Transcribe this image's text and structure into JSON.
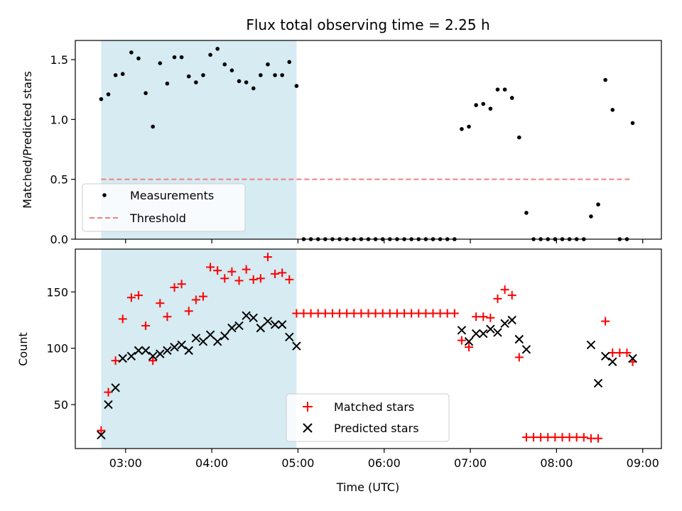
{
  "title": "Flux total observing time = 2.25 h",
  "xlabel": "Time (UTC)",
  "x_tick_labels": [
    "03:00",
    "04:00",
    "05:00",
    "06:00",
    "07:00",
    "08:00",
    "09:00"
  ],
  "colors": {
    "highlight": "#add8e6",
    "measurements": "#000000",
    "threshold": "#f08080",
    "matched": "#ff0000",
    "predicted": "#000000"
  },
  "chart_data": [
    {
      "type": "scatter",
      "ylabel": "Matched/Predicted stars",
      "xlim": [
        "02:25",
        "09:13"
      ],
      "ylim": [
        0,
        1.66
      ],
      "y_ticks": [
        0.0,
        0.5,
        1.0,
        1.5
      ],
      "y_tick_labels": [
        "0.0",
        "0.5",
        "1.0",
        "1.5"
      ],
      "highlight_span": [
        "02:43",
        "04:59"
      ],
      "legend": {
        "position": "lower-left",
        "entries": [
          "Measurements",
          "Threshold"
        ]
      },
      "threshold": {
        "name": "Threshold",
        "value": 0.5,
        "x": [
          "02:43",
          "08:53"
        ]
      },
      "series": [
        {
          "name": "Measurements",
          "points": [
            [
              "02:43",
              1.17
            ],
            [
              "02:48",
              1.21
            ],
            [
              "02:53",
              1.37
            ],
            [
              "02:58",
              1.38
            ],
            [
              "03:04",
              1.56
            ],
            [
              "03:09",
              1.51
            ],
            [
              "03:14",
              1.22
            ],
            [
              "03:19",
              0.94
            ],
            [
              "03:24",
              1.47
            ],
            [
              "03:29",
              1.3
            ],
            [
              "03:34",
              1.52
            ],
            [
              "03:39",
              1.52
            ],
            [
              "03:44",
              1.36
            ],
            [
              "03:49",
              1.31
            ],
            [
              "03:54",
              1.37
            ],
            [
              "03:59",
              1.54
            ],
            [
              "04:04",
              1.59
            ],
            [
              "04:09",
              1.46
            ],
            [
              "04:14",
              1.41
            ],
            [
              "04:19",
              1.32
            ],
            [
              "04:24",
              1.31
            ],
            [
              "04:29",
              1.26
            ],
            [
              "04:34",
              1.37
            ],
            [
              "04:39",
              1.46
            ],
            [
              "04:44",
              1.37
            ],
            [
              "04:49",
              1.37
            ],
            [
              "04:54",
              1.48
            ],
            [
              "04:59",
              1.28
            ],
            [
              "05:04",
              0
            ],
            [
              "05:09",
              0
            ],
            [
              "05:14",
              0
            ],
            [
              "05:19",
              0
            ],
            [
              "05:24",
              0
            ],
            [
              "05:29",
              0
            ],
            [
              "05:34",
              0
            ],
            [
              "05:39",
              0
            ],
            [
              "05:44",
              0
            ],
            [
              "05:49",
              0
            ],
            [
              "05:54",
              0
            ],
            [
              "05:59",
              0
            ],
            [
              "06:04",
              0
            ],
            [
              "06:09",
              0
            ],
            [
              "06:14",
              0
            ],
            [
              "06:19",
              0
            ],
            [
              "06:24",
              0
            ],
            [
              "06:29",
              0
            ],
            [
              "06:34",
              0
            ],
            [
              "06:39",
              0
            ],
            [
              "06:44",
              0
            ],
            [
              "06:49",
              0
            ],
            [
              "06:54",
              0.92
            ],
            [
              "06:59",
              0.94
            ],
            [
              "07:04",
              1.12
            ],
            [
              "07:09",
              1.13
            ],
            [
              "07:14",
              1.09
            ],
            [
              "07:19",
              1.25
            ],
            [
              "07:24",
              1.25
            ],
            [
              "07:29",
              1.18
            ],
            [
              "07:34",
              0.85
            ],
            [
              "07:39",
              0.22
            ],
            [
              "07:44",
              0
            ],
            [
              "07:49",
              0
            ],
            [
              "07:54",
              0
            ],
            [
              "07:59",
              0
            ],
            [
              "08:04",
              0
            ],
            [
              "08:09",
              0
            ],
            [
              "08:14",
              0
            ],
            [
              "08:19",
              0
            ],
            [
              "08:24",
              0.19
            ],
            [
              "08:29",
              0.29
            ],
            [
              "08:34",
              1.33
            ],
            [
              "08:39",
              1.08
            ],
            [
              "08:44",
              0
            ],
            [
              "08:49",
              0
            ],
            [
              "08:53",
              0.97
            ]
          ]
        }
      ]
    },
    {
      "type": "scatter",
      "ylabel": "Count",
      "xlim": [
        "02:25",
        "09:13"
      ],
      "ylim": [
        11,
        188
      ],
      "y_ticks": [
        50,
        100,
        150
      ],
      "y_tick_labels": [
        "50",
        "100",
        "150"
      ],
      "highlight_span": [
        "02:43",
        "04:59"
      ],
      "legend": {
        "position": "lower-center",
        "entries": [
          "Matched stars",
          "Predicted stars"
        ]
      },
      "series": [
        {
          "name": "Matched stars",
          "marker": "plus",
          "points": [
            [
              "02:43",
              27
            ],
            [
              "02:48",
              61
            ],
            [
              "02:53",
              89
            ],
            [
              "02:58",
              126
            ],
            [
              "03:04",
              145
            ],
            [
              "03:09",
              147
            ],
            [
              "03:14",
              120
            ],
            [
              "03:19",
              89
            ],
            [
              "03:24",
              140
            ],
            [
              "03:29",
              128
            ],
            [
              "03:34",
              154
            ],
            [
              "03:39",
              157
            ],
            [
              "03:44",
              133
            ],
            [
              "03:49",
              143
            ],
            [
              "03:54",
              146
            ],
            [
              "03:59",
              172
            ],
            [
              "04:04",
              169
            ],
            [
              "04:09",
              162
            ],
            [
              "04:14",
              168
            ],
            [
              "04:19",
              160
            ],
            [
              "04:24",
              170
            ],
            [
              "04:29",
              161
            ],
            [
              "04:34",
              162
            ],
            [
              "04:39",
              181
            ],
            [
              "04:44",
              166
            ],
            [
              "04:49",
              167
            ],
            [
              "04:54",
              161
            ],
            [
              "04:59",
              131
            ],
            [
              "05:04",
              131
            ],
            [
              "05:09",
              131
            ],
            [
              "05:14",
              131
            ],
            [
              "05:19",
              131
            ],
            [
              "05:24",
              131
            ],
            [
              "05:29",
              131
            ],
            [
              "05:34",
              131
            ],
            [
              "05:39",
              131
            ],
            [
              "05:44",
              131
            ],
            [
              "05:49",
              131
            ],
            [
              "05:54",
              131
            ],
            [
              "05:59",
              131
            ],
            [
              "06:04",
              131
            ],
            [
              "06:09",
              131
            ],
            [
              "06:14",
              131
            ],
            [
              "06:19",
              131
            ],
            [
              "06:24",
              131
            ],
            [
              "06:29",
              131
            ],
            [
              "06:34",
              131
            ],
            [
              "06:39",
              131
            ],
            [
              "06:44",
              131
            ],
            [
              "06:49",
              131
            ],
            [
              "06:54",
              107
            ],
            [
              "06:59",
              101
            ],
            [
              "07:04",
              128
            ],
            [
              "07:09",
              128
            ],
            [
              "07:14",
              127
            ],
            [
              "07:19",
              144
            ],
            [
              "07:24",
              152
            ],
            [
              "07:29",
              147
            ],
            [
              "07:34",
              92
            ],
            [
              "07:39",
              21
            ],
            [
              "07:44",
              21
            ],
            [
              "07:49",
              21
            ],
            [
              "07:54",
              21
            ],
            [
              "07:59",
              21
            ],
            [
              "08:04",
              21
            ],
            [
              "08:09",
              21
            ],
            [
              "08:14",
              21
            ],
            [
              "08:19",
              21
            ],
            [
              "08:24",
              20
            ],
            [
              "08:29",
              20
            ],
            [
              "08:34",
              124
            ],
            [
              "08:39",
              96
            ],
            [
              "08:44",
              96
            ],
            [
              "08:49",
              96
            ],
            [
              "08:53",
              88
            ]
          ]
        },
        {
          "name": "Predicted stars",
          "marker": "x",
          "points": [
            [
              "02:43",
              23
            ],
            [
              "02:48",
              50
            ],
            [
              "02:53",
              65
            ],
            [
              "02:58",
              91
            ],
            [
              "03:04",
              93
            ],
            [
              "03:09",
              98
            ],
            [
              "03:14",
              98
            ],
            [
              "03:19",
              93
            ],
            [
              "03:24",
              95
            ],
            [
              "03:29",
              98
            ],
            [
              "03:34",
              101
            ],
            [
              "03:39",
              103
            ],
            [
              "03:44",
              98
            ],
            [
              "03:49",
              109
            ],
            [
              "03:54",
              106
            ],
            [
              "03:59",
              112
            ],
            [
              "04:04",
              106
            ],
            [
              "04:09",
              111
            ],
            [
              "04:14",
              118
            ],
            [
              "04:19",
              120
            ],
            [
              "04:24",
              129
            ],
            [
              "04:29",
              127
            ],
            [
              "04:34",
              118
            ],
            [
              "04:39",
              124
            ],
            [
              "04:44",
              121
            ],
            [
              "04:49",
              121
            ],
            [
              "04:54",
              110
            ],
            [
              "04:59",
              102
            ],
            [
              "06:54",
              116
            ],
            [
              "06:59",
              106
            ],
            [
              "07:04",
              113
            ],
            [
              "07:09",
              113
            ],
            [
              "07:14",
              117
            ],
            [
              "07:19",
              114
            ],
            [
              "07:24",
              122
            ],
            [
              "07:29",
              125
            ],
            [
              "07:34",
              108
            ],
            [
              "07:39",
              99
            ],
            [
              "08:24",
              103
            ],
            [
              "08:29",
              69
            ],
            [
              "08:34",
              93
            ],
            [
              "08:39",
              88
            ],
            [
              "08:53",
              91
            ]
          ]
        }
      ]
    }
  ]
}
